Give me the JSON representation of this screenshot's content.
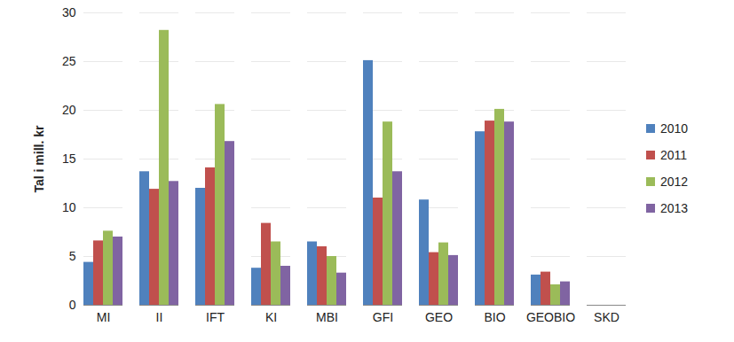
{
  "chart_data": {
    "type": "bar",
    "y_label": "Tal i mill. kr",
    "categories": [
      "MI",
      "II",
      "IFT",
      "KI",
      "MBI",
      "GFI",
      "GEO",
      "BIO",
      "GEOBIO",
      "SKD"
    ],
    "series": [
      {
        "name": "2010",
        "color": "#4f81bd",
        "values": [
          4.4,
          13.7,
          12.0,
          3.8,
          6.5,
          25.1,
          10.8,
          17.8,
          3.1,
          0
        ]
      },
      {
        "name": "2011",
        "color": "#c0504d",
        "values": [
          6.6,
          11.9,
          14.1,
          8.4,
          6.0,
          11.0,
          5.4,
          18.9,
          3.4,
          0
        ]
      },
      {
        "name": "2012",
        "color": "#9bbb59",
        "values": [
          7.6,
          28.2,
          20.6,
          6.5,
          5.0,
          18.8,
          6.4,
          20.1,
          2.1,
          0
        ]
      },
      {
        "name": "2013",
        "color": "#8064a2",
        "values": [
          7.0,
          12.7,
          16.8,
          4.0,
          3.3,
          13.7,
          5.1,
          18.8,
          2.4,
          0
        ]
      }
    ],
    "ylim": [
      0,
      30
    ],
    "yticks": [
      0,
      5,
      10,
      15,
      20,
      25,
      30
    ],
    "grid": true,
    "legend": "right"
  }
}
